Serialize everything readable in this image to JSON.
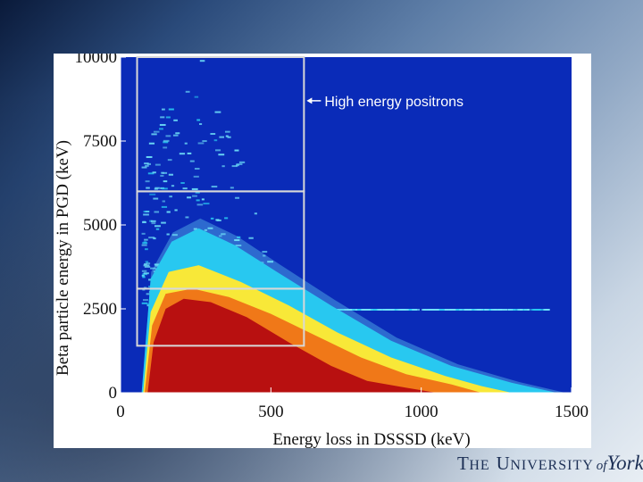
{
  "colors": {
    "background_blue": "#0a2bb8",
    "cyan": "#28c8f0",
    "light_cyan": "#6fe0f8",
    "yellow": "#f8e838",
    "orange": "#f07818",
    "red": "#b81010",
    "gate_box": "#d8d8d8"
  },
  "chart_data": {
    "type": "heatmap",
    "title": "",
    "xlabel": "Energy loss in DSSSD (keV)",
    "ylabel": "Beta particle energy in PGD (keV)",
    "xlim": [
      0,
      1500
    ],
    "ylim": [
      0,
      10000
    ],
    "x_ticks": [
      "0",
      "500",
      "1000",
      "1500"
    ],
    "y_ticks": [
      "0",
      "2500",
      "5000",
      "7500",
      "10000"
    ],
    "color_scale_low_to_high": [
      "blue",
      "light cyan",
      "cyan",
      "yellow",
      "orange",
      "red"
    ],
    "contour_envelopes": [
      {
        "level": "red",
        "points": [
          [
            90,
            0
          ],
          [
            110,
            1500
          ],
          [
            150,
            2500
          ],
          [
            210,
            2800
          ],
          [
            300,
            2700
          ],
          [
            420,
            2250
          ],
          [
            560,
            1500
          ],
          [
            700,
            800
          ],
          [
            820,
            350
          ],
          [
            950,
            150
          ],
          [
            1050,
            0
          ]
        ]
      },
      {
        "level": "orange",
        "points": [
          [
            80,
            0
          ],
          [
            105,
            2000
          ],
          [
            150,
            2950
          ],
          [
            240,
            3100
          ],
          [
            360,
            2850
          ],
          [
            500,
            2350
          ],
          [
            650,
            1700
          ],
          [
            800,
            1050
          ],
          [
            950,
            550
          ],
          [
            1100,
            250
          ],
          [
            1200,
            0
          ]
        ]
      },
      {
        "level": "yellow",
        "points": [
          [
            75,
            0
          ],
          [
            100,
            2400
          ],
          [
            160,
            3600
          ],
          [
            260,
            3800
          ],
          [
            400,
            3300
          ],
          [
            560,
            2600
          ],
          [
            720,
            1800
          ],
          [
            900,
            1050
          ],
          [
            1080,
            500
          ],
          [
            1200,
            200
          ],
          [
            1300,
            0
          ]
        ]
      },
      {
        "level": "cyan",
        "points": [
          [
            70,
            0
          ],
          [
            100,
            3400
          ],
          [
            170,
            4500
          ],
          [
            260,
            4900
          ],
          [
            380,
            4400
          ],
          [
            520,
            3600
          ],
          [
            700,
            2600
          ],
          [
            900,
            1550
          ],
          [
            1100,
            800
          ],
          [
            1300,
            300
          ],
          [
            1450,
            0
          ]
        ]
      }
    ],
    "gates": [
      {
        "label": "",
        "x_range": [
          55,
          610
        ],
        "y_range": [
          6000,
          10000
        ]
      },
      {
        "label": "",
        "x_range": [
          55,
          610
        ],
        "y_range": [
          3100,
          6000
        ]
      },
      {
        "label": "",
        "x_range": [
          55,
          610
        ],
        "y_range": [
          1400,
          3100
        ]
      }
    ],
    "annotations": [
      {
        "text": "High energy positrons",
        "arrow_to": [
          610,
          8700
        ]
      }
    ]
  },
  "logo": {
    "the": "T",
    "he": "HE",
    "university_u": "U",
    "niversity": "NIVERSITY",
    "of": "of",
    "york": "York"
  }
}
